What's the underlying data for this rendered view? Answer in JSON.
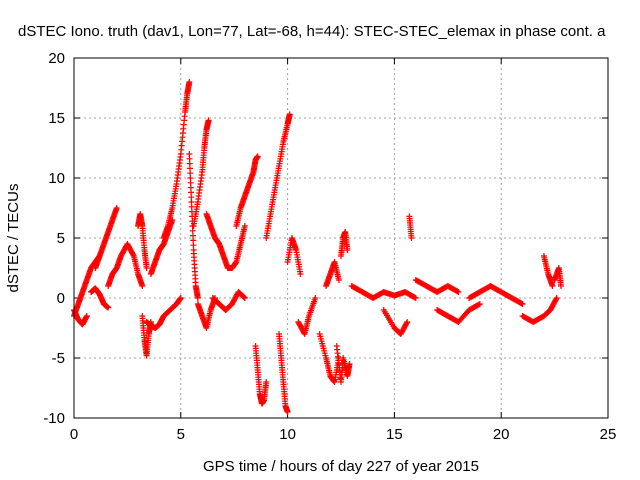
{
  "chart_data": {
    "type": "scatter",
    "title": "dSTEC Iono. truth (dav1, Lon=77, Lat=-68, h=44): STEC-STEC_elemax in phase cont. a",
    "xlabel": "GPS time / hours of day 227 of year 2015",
    "ylabel": "dSTEC  / TECUs",
    "xlim": [
      0,
      25
    ],
    "ylim": [
      -10,
      20
    ],
    "xticks": [
      "0",
      "5",
      "10",
      "15",
      "20",
      "25"
    ],
    "yticks": [
      "-10",
      "-5",
      "0",
      "5",
      "10",
      "15",
      "20"
    ],
    "grid": true,
    "marker": "+",
    "series": [
      {
        "color": "#ff0000",
        "segments": [
          {
            "x": [
              0.0,
              0.2,
              0.4,
              0.6,
              0.8,
              1.0,
              1.2
            ],
            "y": [
              -1.5,
              -0.5,
              0.5,
              1.5,
              2.5,
              3.0,
              3.5
            ]
          },
          {
            "x": [
              0.0,
              0.2,
              0.4,
              0.6
            ],
            "y": [
              -1.0,
              -1.8,
              -2.2,
              -1.5
            ]
          },
          {
            "x": [
              1.0,
              1.2,
              1.4,
              1.6,
              1.8,
              2.0
            ],
            "y": [
              2.5,
              3.5,
              4.5,
              5.5,
              6.5,
              7.5
            ]
          },
          {
            "x": [
              0.8,
              1.0,
              1.2,
              1.4,
              1.6
            ],
            "y": [
              0.5,
              0.8,
              0.3,
              -0.5,
              -0.8
            ]
          },
          {
            "x": [
              1.6,
              1.8,
              2.0,
              2.2,
              2.5,
              2.8,
              3.0,
              3.2
            ],
            "y": [
              1.0,
              2.0,
              2.5,
              3.5,
              4.5,
              3.5,
              2.0,
              1.0
            ]
          },
          {
            "x": [
              3.0,
              3.1,
              3.2,
              3.3,
              3.4
            ],
            "y": [
              6.0,
              7.0,
              6.0,
              4.0,
              2.5
            ]
          },
          {
            "x": [
              3.2,
              3.3,
              3.4,
              3.5,
              3.6
            ],
            "y": [
              -1.5,
              -3.5,
              -4.8,
              -3.0,
              -2.0
            ]
          },
          {
            "x": [
              3.4,
              3.6,
              3.8,
              4.0,
              4.2,
              4.5,
              4.8,
              5.0
            ],
            "y": [
              -2.0,
              -2.3,
              -2.5,
              -2.2,
              -1.5,
              -1.0,
              -0.5,
              0.0
            ]
          },
          {
            "x": [
              3.6,
              3.8,
              4.0,
              4.2,
              4.4,
              4.6
            ],
            "y": [
              2.0,
              3.0,
              4.0,
              4.5,
              5.5,
              6.5
            ]
          },
          {
            "x": [
              4.2,
              4.4,
              4.6,
              4.8,
              5.0,
              5.2,
              5.3,
              5.4
            ],
            "y": [
              5.0,
              6.0,
              7.5,
              9.5,
              12.0,
              15.5,
              17.0,
              18.0
            ]
          },
          {
            "x": [
              5.4,
              5.5,
              5.6,
              5.7,
              5.8
            ],
            "y": [
              12.0,
              8.0,
              4.0,
              1.0,
              0.0
            ]
          },
          {
            "x": [
              5.6,
              5.8,
              6.0,
              6.1,
              6.2,
              6.3
            ],
            "y": [
              6.0,
              8.0,
              10.5,
              12.5,
              14.0,
              14.8
            ]
          },
          {
            "x": [
              5.8,
              6.0,
              6.2,
              6.4,
              6.6
            ],
            "y": [
              -0.5,
              -1.5,
              -2.5,
              -1.0,
              0.0
            ]
          },
          {
            "x": [
              6.2,
              6.4,
              6.6,
              6.8,
              7.0,
              7.2,
              7.4,
              7.6,
              7.8,
              8.0
            ],
            "y": [
              7.0,
              6.0,
              5.0,
              4.5,
              3.5,
              2.5,
              2.5,
              3.0,
              4.5,
              6.0
            ]
          },
          {
            "x": [
              6.5,
              6.8,
              7.1,
              7.4,
              7.7,
              8.0
            ],
            "y": [
              0.0,
              -0.5,
              -1.0,
              -0.5,
              0.5,
              0.0
            ]
          },
          {
            "x": [
              7.6,
              7.8,
              8.0,
              8.2,
              8.4,
              8.5,
              8.6
            ],
            "y": [
              6.0,
              7.5,
              8.5,
              9.5,
              10.5,
              11.5,
              11.8
            ]
          },
          {
            "x": [
              8.5,
              8.6,
              8.7,
              8.8,
              8.9,
              9.0
            ],
            "y": [
              -4.0,
              -6.0,
              -8.0,
              -8.8,
              -8.5,
              -7.0
            ]
          },
          {
            "x": [
              9.0,
              9.2,
              9.4,
              9.6,
              9.8,
              10.0,
              10.1
            ],
            "y": [
              5.0,
              7.0,
              9.0,
              11.0,
              13.0,
              14.5,
              15.3
            ]
          },
          {
            "x": [
              9.6,
              9.7,
              9.8,
              9.9,
              10.0
            ],
            "y": [
              -3.0,
              -5.0,
              -7.0,
              -9.0,
              -9.5
            ]
          },
          {
            "x": [
              10.0,
              10.2,
              10.4,
              10.6
            ],
            "y": [
              3.0,
              5.0,
              4.0,
              2.0
            ]
          },
          {
            "x": [
              10.5,
              10.8,
              11.0,
              11.3
            ],
            "y": [
              -2.0,
              -3.0,
              -1.5,
              0.0
            ]
          },
          {
            "x": [
              11.5,
              11.8,
              12.0,
              12.2,
              12.4
            ],
            "y": [
              -3.0,
              -5.0,
              -6.5,
              -7.0,
              -5.0
            ]
          },
          {
            "x": [
              11.8,
              12.0,
              12.2,
              12.4
            ],
            "y": [
              1.0,
              2.0,
              3.0,
              1.5
            ]
          },
          {
            "x": [
              12.3,
              12.5,
              12.6,
              12.8,
              12.9
            ],
            "y": [
              -4.0,
              -7.0,
              -5.0,
              -6.5,
              -5.5
            ]
          },
          {
            "x": [
              12.5,
              12.6,
              12.7,
              12.8
            ],
            "y": [
              3.5,
              5.0,
              5.5,
              4.0
            ]
          },
          {
            "x": [
              13.0,
              13.5,
              14.0,
              14.5,
              15.0,
              15.5,
              16.0
            ],
            "y": [
              1.0,
              0.5,
              0.0,
              0.5,
              0.2,
              0.5,
              0.0
            ]
          },
          {
            "x": [
              14.5,
              15.0,
              15.3,
              15.6
            ],
            "y": [
              -1.0,
              -2.5,
              -3.0,
              -2.0
            ]
          },
          {
            "x": [
              15.7,
              15.8
            ],
            "y": [
              6.8,
              5.0
            ]
          },
          {
            "x": [
              16.0,
              16.5,
              17.0,
              17.5,
              18.0
            ],
            "y": [
              1.5,
              1.0,
              0.5,
              1.0,
              0.5
            ]
          },
          {
            "x": [
              17.0,
              17.5,
              18.0,
              18.5,
              19.0
            ],
            "y": [
              -1.0,
              -1.5,
              -2.0,
              -1.0,
              -0.5
            ]
          },
          {
            "x": [
              18.5,
              19.0,
              19.5,
              20.0,
              20.5,
              21.0
            ],
            "y": [
              0.0,
              0.5,
              1.0,
              0.5,
              0.0,
              -0.5
            ]
          },
          {
            "x": [
              21.0,
              21.5,
              22.0,
              22.3,
              22.6
            ],
            "y": [
              -1.5,
              -2.0,
              -1.5,
              -1.0,
              0.0
            ]
          },
          {
            "x": [
              22.0,
              22.2,
              22.4
            ],
            "y": [
              3.5,
              2.0,
              1.0
            ]
          },
          {
            "x": [
              22.5,
              22.7,
              22.8
            ],
            "y": [
              1.5,
              2.5,
              1.0
            ]
          }
        ]
      }
    ]
  }
}
